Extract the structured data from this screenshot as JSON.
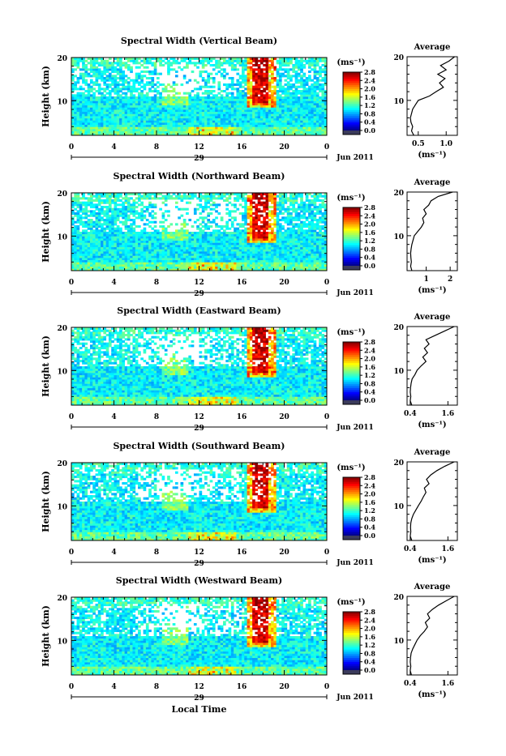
{
  "figure": {
    "xlabel": "Local Time",
    "date_label": "Jun 2011",
    "day_label": "29",
    "cbar_unit": "(ms⁻¹)",
    "avg_title": "Average",
    "avg_unit": "(ms⁻¹)",
    "ylabel": "Height (km)"
  },
  "chart_data": [
    {
      "type": "heatmap",
      "title": "Spectral Width (Vertical Beam)",
      "xlabel": "",
      "ylabel": "Height (km)",
      "xlim": [
        0,
        24
      ],
      "ylim": [
        2,
        20
      ],
      "x_ticks": [
        "0",
        "4",
        "8",
        "12",
        "16",
        "20",
        "0"
      ],
      "y_ticks": [
        "10",
        "20"
      ],
      "colorbar": {
        "range": [
          0,
          2.8
        ],
        "ticks": [
          "0.0",
          "0.4",
          "0.8",
          "1.2",
          "1.6",
          "2.0",
          "2.4",
          "2.8"
        ]
      },
      "average_profile": {
        "xlim": [
          0.3,
          1.2
        ],
        "x_ticks": [
          "0.5",
          "1.0"
        ],
        "y_ticks": [
          "10",
          "20"
        ],
        "heights": [
          2,
          3,
          4,
          5,
          6,
          7,
          8,
          9,
          10,
          11,
          12,
          13,
          14,
          15,
          16,
          17,
          18,
          19,
          20
        ],
        "values": [
          0.42,
          0.38,
          0.4,
          0.37,
          0.36,
          0.38,
          0.4,
          0.45,
          0.5,
          0.7,
          0.82,
          0.95,
          0.88,
          0.98,
          0.85,
          1.0,
          0.9,
          1.05,
          1.15
        ]
      }
    },
    {
      "type": "heatmap",
      "title": "Spectral Width (Northward Beam)",
      "xlabel": "",
      "ylabel": "Height (km)",
      "xlim": [
        0,
        24
      ],
      "ylim": [
        2,
        20
      ],
      "x_ticks": [
        "0",
        "4",
        "8",
        "12",
        "16",
        "20",
        "0"
      ],
      "y_ticks": [
        "10",
        "20"
      ],
      "colorbar": {
        "range": [
          0,
          2.8
        ],
        "ticks": [
          "0.0",
          "0.4",
          "0.8",
          "1.2",
          "1.6",
          "2.0",
          "2.4",
          "2.8"
        ]
      },
      "average_profile": {
        "xlim": [
          0.2,
          2.3
        ],
        "x_ticks": [
          "1",
          "2"
        ],
        "y_ticks": [
          "10",
          "20"
        ],
        "heights": [
          2,
          3,
          4,
          5,
          6,
          7,
          8,
          9,
          10,
          11,
          12,
          13,
          14,
          15,
          16,
          17,
          18,
          19,
          20
        ],
        "values": [
          0.4,
          0.35,
          0.38,
          0.36,
          0.35,
          0.37,
          0.4,
          0.45,
          0.5,
          0.65,
          0.8,
          0.9,
          0.85,
          1.0,
          0.9,
          1.1,
          1.2,
          1.5,
          2.1
        ]
      }
    },
    {
      "type": "heatmap",
      "title": "Spectral Width (Eastward Beam)",
      "xlabel": "",
      "ylabel": "Height (km)",
      "xlim": [
        0,
        24
      ],
      "ylim": [
        2,
        20
      ],
      "x_ticks": [
        "0",
        "4",
        "8",
        "12",
        "16",
        "20",
        "0"
      ],
      "y_ticks": [
        "10",
        "20"
      ],
      "colorbar": {
        "range": [
          0,
          2.8
        ],
        "ticks": [
          "0.0",
          "0.4",
          "0.8",
          "1.2",
          "1.6",
          "2.0",
          "2.4",
          "2.8"
        ]
      },
      "average_profile": {
        "xlim": [
          0.3,
          1.9
        ],
        "x_ticks": [
          "0.4",
          "1.6"
        ],
        "y_ticks": [
          "10",
          "20"
        ],
        "heights": [
          2,
          3,
          4,
          5,
          6,
          7,
          8,
          9,
          10,
          11,
          12,
          13,
          14,
          15,
          16,
          17,
          18,
          19,
          20
        ],
        "values": [
          0.45,
          0.4,
          0.42,
          0.4,
          0.41,
          0.43,
          0.46,
          0.55,
          0.62,
          0.75,
          0.9,
          0.8,
          0.95,
          0.85,
          1.0,
          0.9,
          1.2,
          1.5,
          1.8
        ]
      }
    },
    {
      "type": "heatmap",
      "title": "Spectral Width (Southward Beam)",
      "xlabel": "",
      "ylabel": "Height (km)",
      "xlim": [
        0,
        24
      ],
      "ylim": [
        2,
        20
      ],
      "x_ticks": [
        "0",
        "4",
        "8",
        "12",
        "16",
        "20",
        "0"
      ],
      "y_ticks": [
        "10",
        "20"
      ],
      "colorbar": {
        "range": [
          0,
          2.8
        ],
        "ticks": [
          "0.0",
          "0.4",
          "0.8",
          "1.2",
          "1.6",
          "2.0",
          "2.4",
          "2.8"
        ]
      },
      "average_profile": {
        "xlim": [
          0.3,
          1.9
        ],
        "x_ticks": [
          "0.4",
          "1.6"
        ],
        "y_ticks": [
          "10",
          "20"
        ],
        "heights": [
          2,
          3,
          4,
          5,
          6,
          7,
          8,
          9,
          10,
          11,
          12,
          13,
          14,
          15,
          16,
          17,
          18,
          19,
          20
        ],
        "values": [
          0.45,
          0.4,
          0.42,
          0.41,
          0.42,
          0.45,
          0.5,
          0.58,
          0.66,
          0.75,
          0.82,
          0.9,
          0.85,
          1.0,
          0.92,
          1.05,
          1.25,
          1.5,
          1.8
        ]
      }
    },
    {
      "type": "heatmap",
      "title": "Spectral Width (Westward Beam)",
      "xlabel": "Local Time",
      "ylabel": "Height (km)",
      "xlim": [
        0,
        24
      ],
      "ylim": [
        2,
        20
      ],
      "x_ticks": [
        "0",
        "4",
        "8",
        "12",
        "16",
        "20",
        "0"
      ],
      "y_ticks": [
        "10",
        "20"
      ],
      "colorbar": {
        "range": [
          0,
          2.8
        ],
        "ticks": [
          "0.0",
          "0.4",
          "0.8",
          "1.2",
          "1.6",
          "2.0",
          "2.4",
          "2.8"
        ]
      },
      "average_profile": {
        "xlim": [
          0.3,
          1.9
        ],
        "x_ticks": [
          "0.4",
          "1.6"
        ],
        "y_ticks": [
          "10",
          "20"
        ],
        "heights": [
          2,
          3,
          4,
          5,
          6,
          7,
          8,
          9,
          10,
          11,
          12,
          13,
          14,
          15,
          16,
          17,
          18,
          19,
          20
        ],
        "values": [
          0.44,
          0.4,
          0.42,
          0.4,
          0.41,
          0.43,
          0.48,
          0.55,
          0.62,
          0.72,
          0.85,
          0.95,
          0.88,
          1.02,
          0.95,
          1.1,
          1.3,
          1.55,
          1.8
        ]
      }
    }
  ]
}
